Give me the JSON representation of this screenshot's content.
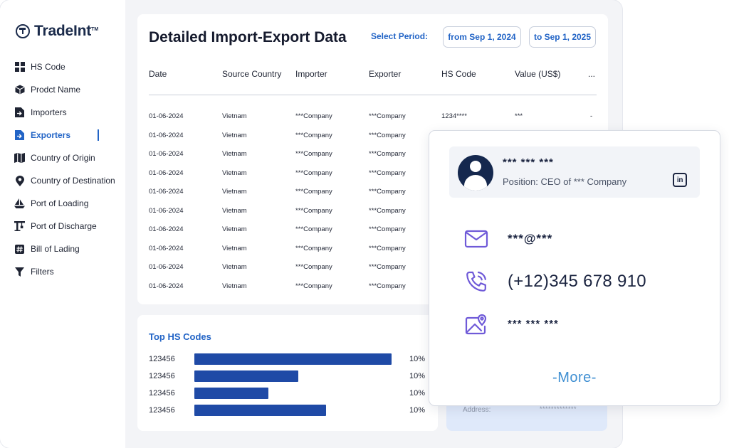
{
  "brand": {
    "name": "TradeInt",
    "tm": "TM"
  },
  "sidebar": {
    "items": [
      {
        "label": "HS Code",
        "icon": "grid-icon"
      },
      {
        "label": "Prodct Name",
        "icon": "box-icon"
      },
      {
        "label": "Importers",
        "icon": "document-in-icon"
      },
      {
        "label": "Exporters",
        "icon": "document-out-icon",
        "active": true
      },
      {
        "label": "Country of Origin",
        "icon": "map-icon"
      },
      {
        "label": "Country of Destination",
        "icon": "location-pin-icon"
      },
      {
        "label": "Port of Loading",
        "icon": "ship-icon"
      },
      {
        "label": "Port of Discharge",
        "icon": "crane-icon"
      },
      {
        "label": "Bill of Lading",
        "icon": "hash-icon"
      },
      {
        "label": "Filters",
        "icon": "filter-icon"
      }
    ]
  },
  "table_panel": {
    "title": "Detailed Import-Export Data",
    "period_label": "Select Period:",
    "from": "from Sep 1, 2024",
    "to": "to Sep 1, 2025",
    "columns": [
      "Date",
      "Source Country",
      "Importer",
      "Exporter",
      "HS Code",
      "Value (US$)",
      "..."
    ],
    "rows": [
      [
        "01-06-2024",
        "Vietnam",
        "***Company",
        "***Company",
        "1234****",
        "***",
        "-"
      ],
      [
        "01-06-2024",
        "Vietnam",
        "***Company",
        "***Company",
        "",
        "",
        ""
      ],
      [
        "01-06-2024",
        "Vietnam",
        "***Company",
        "***Company",
        "",
        "",
        ""
      ],
      [
        "01-06-2024",
        "Vietnam",
        "***Company",
        "***Company",
        "",
        "",
        ""
      ],
      [
        "01-06-2024",
        "Vietnam",
        "***Company",
        "***Company",
        "",
        "",
        ""
      ],
      [
        "01-06-2024",
        "Vietnam",
        "***Company",
        "***Company",
        "",
        "",
        ""
      ],
      [
        "01-06-2024",
        "Vietnam",
        "***Company",
        "***Company",
        "",
        "",
        ""
      ],
      [
        "01-06-2024",
        "Vietnam",
        "***Company",
        "***Company",
        "",
        "",
        ""
      ],
      [
        "01-06-2024",
        "Vietnam",
        "***Company",
        "***Company",
        "",
        "",
        ""
      ],
      [
        "01-06-2024",
        "Vietnam",
        "***Company",
        "***Company",
        "",
        "",
        ""
      ]
    ]
  },
  "hs_panel": {
    "title": "Top HS Codes",
    "items": [
      {
        "code": "123456",
        "pct": "10%",
        "fill": 0.99
      },
      {
        "code": "123456",
        "pct": "10%",
        "fill": 0.52
      },
      {
        "code": "123456",
        "pct": "10%",
        "fill": 0.37
      },
      {
        "code": "123456",
        "pct": "10%",
        "fill": 0.66
      }
    ]
  },
  "address_panel": {
    "label": "Address:",
    "value": "*************"
  },
  "contact_card": {
    "name": "*** *** ***",
    "position": "Position: CEO of *** Company",
    "linkedin": "in",
    "email": "***@***",
    "phone": "(+12)345 678 910",
    "address": "*** *** ***",
    "more": "-More-"
  },
  "colors": {
    "accent": "#2264c6",
    "bar": "#1f4aa6",
    "navy": "#15284e",
    "contact_icon": "#6f5ad8",
    "more_link": "#3f8fd2"
  }
}
